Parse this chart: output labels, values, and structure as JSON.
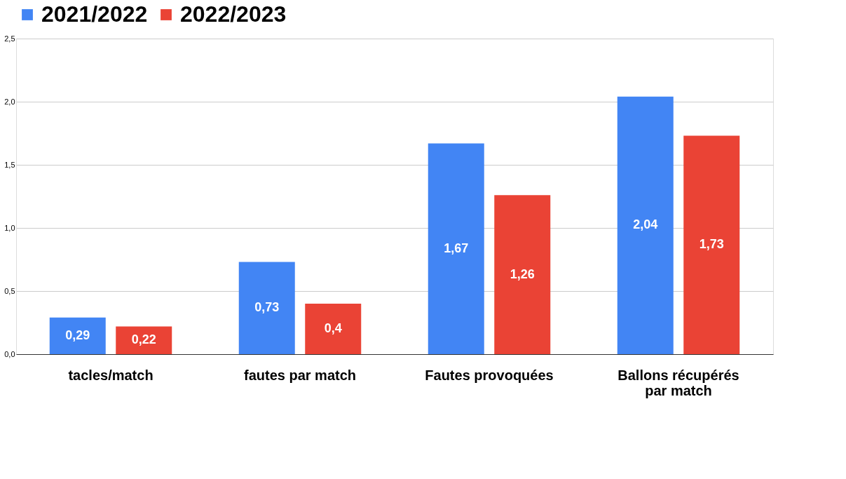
{
  "chart_data": {
    "type": "bar",
    "categories": [
      "tacles/match",
      "fautes par match",
      "Fautes provoquées",
      "Ballons récupérés par match"
    ],
    "series": [
      {
        "name": "2021/2022",
        "color": "#4285f4",
        "values": [
          0.29,
          0.73,
          1.67,
          2.04
        ],
        "value_labels": [
          "0,29",
          "0,73",
          "1,67",
          "2,04"
        ]
      },
      {
        "name": "2022/2023",
        "color": "#ea4335",
        "values": [
          0.22,
          0.4,
          1.26,
          1.73
        ],
        "value_labels": [
          "0,22",
          "0,4",
          "1,26",
          "1,73"
        ]
      }
    ],
    "ylim": [
      0,
      2.5
    ],
    "yticks": [
      {
        "value": 0,
        "label": "0,0"
      },
      {
        "value": 0.5,
        "label": "0,5"
      },
      {
        "value": 1,
        "label": "1,0"
      },
      {
        "value": 1.5,
        "label": "1,5"
      },
      {
        "value": 2,
        "label": "2,0"
      },
      {
        "value": 2.5,
        "label": "2,5"
      }
    ],
    "grid": "y",
    "legend": "top"
  }
}
